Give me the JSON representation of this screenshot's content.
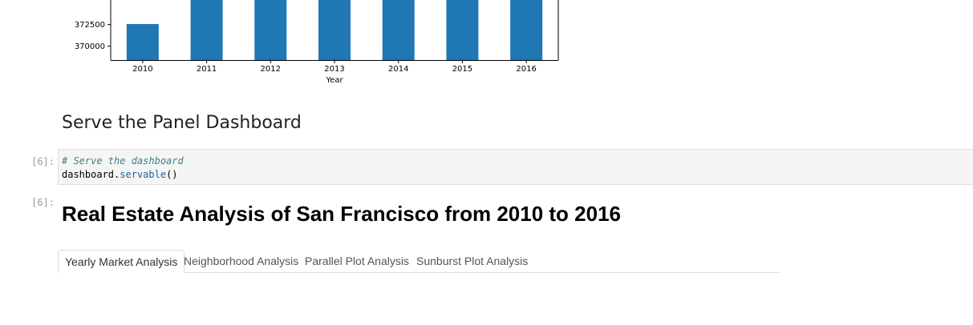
{
  "chart_data": {
    "type": "bar",
    "categories": [
      "2010",
      "2011",
      "2012",
      "2013",
      "2014",
      "2015",
      "2016"
    ],
    "values": [
      372560,
      376000,
      376000,
      376000,
      376000,
      376000,
      376000
    ],
    "xlabel": "Year",
    "ylabel": "",
    "yticks": [
      370000,
      372500
    ],
    "visible_ylim": [
      368400,
      375800
    ],
    "bar_color": "#1f77b4",
    "grid": false,
    "legend": "none"
  },
  "section_heading": "Serve the Panel Dashboard",
  "cell": {
    "in_prompt": "[6]:",
    "out_prompt": "[6]:",
    "comment": "# Serve the dashboard",
    "code_object": "dashboard",
    "code_dot": ".",
    "code_method": "servable",
    "code_parens": "()"
  },
  "dashboard": {
    "title": "Real Estate Analysis of San Francisco from 2010 to 2016",
    "tabs": [
      {
        "label": "Yearly Market Analysis",
        "active": true
      },
      {
        "label": "Neighborhood Analysis",
        "active": false
      },
      {
        "label": "Parallel Plot Analysis",
        "active": false
      },
      {
        "label": "Sunburst Plot Analysis",
        "active": false
      }
    ]
  }
}
